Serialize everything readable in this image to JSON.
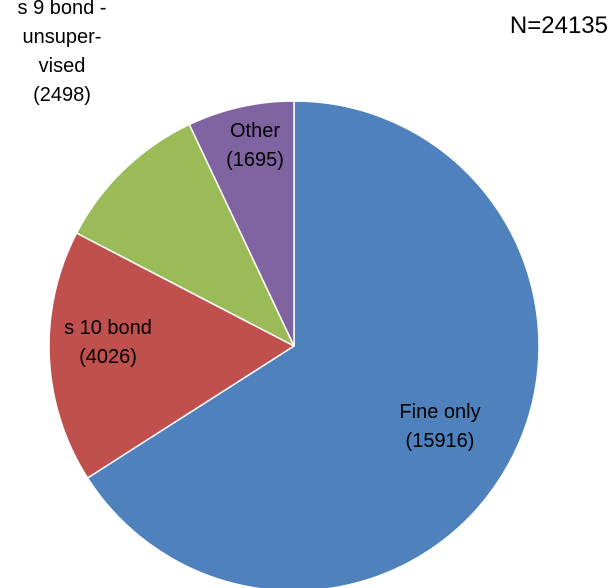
{
  "chart_data": {
    "type": "pie",
    "annotation": "N=24135",
    "start_angle_deg": 0,
    "direction": "clockwise",
    "slices": [
      {
        "name": "Fine only",
        "value": 15916,
        "label_lines": [
          "Fine only",
          "(15916)"
        ],
        "color": "#4F81BD"
      },
      {
        "name": "s 10 bond",
        "value": 4026,
        "label_lines": [
          "s 10 bond",
          "(4026)"
        ],
        "color": "#C0504D"
      },
      {
        "name": "s 9 bond - unsuper-vised",
        "value": 2498,
        "label_lines": [
          "s 9 bond -",
          "unsuper-",
          "vised",
          "(2498)"
        ],
        "color": "#9BBB59"
      },
      {
        "name": "Other",
        "value": 1695,
        "label_lines": [
          "Other",
          "(1695)"
        ],
        "color": "#8064A2"
      }
    ]
  }
}
